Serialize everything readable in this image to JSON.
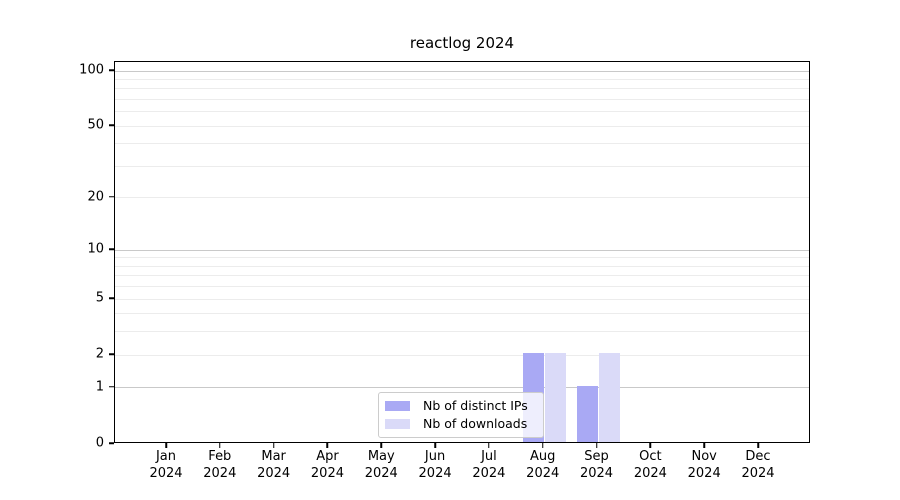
{
  "figure": {
    "title": "reactlog 2024"
  },
  "colors": {
    "distinct_ips_bar": "#a9a9f4",
    "downloads_bar": "#dadaf8",
    "grid_major": "#c9c9c9",
    "grid_minor": "#ececec",
    "spine": "#000000",
    "legend_border": "#cccccc"
  },
  "chart_data": {
    "type": "bar",
    "title": "reactlog 2024",
    "xlabel": "",
    "ylabel": "",
    "categories": [
      "Jan 2024",
      "Feb 2024",
      "Mar 2024",
      "Apr 2024",
      "May 2024",
      "Jun 2024",
      "Jul 2024",
      "Aug 2024",
      "Sep 2024",
      "Oct 2024",
      "Nov 2024",
      "Dec 2024"
    ],
    "x_tick_lines": [
      [
        "Jan",
        "2024"
      ],
      [
        "Feb",
        "2024"
      ],
      [
        "Mar",
        "2024"
      ],
      [
        "Apr",
        "2024"
      ],
      [
        "May",
        "2024"
      ],
      [
        "Jun",
        "2024"
      ],
      [
        "Jul",
        "2024"
      ],
      [
        "Aug",
        "2024"
      ],
      [
        "Sep",
        "2024"
      ],
      [
        "Oct",
        "2024"
      ],
      [
        "Nov",
        "2024"
      ],
      [
        "Dec",
        "2024"
      ]
    ],
    "series": [
      {
        "name": "Nb of distinct IPs",
        "color": "#a9a9f4",
        "values": [
          0,
          0,
          0,
          0,
          0,
          0,
          0,
          2,
          1,
          0,
          0,
          0
        ]
      },
      {
        "name": "Nb of downloads",
        "color": "#dadaf8",
        "values": [
          0,
          0,
          0,
          0,
          0,
          0,
          0,
          2,
          2,
          0,
          0,
          0
        ]
      }
    ],
    "yscale": "log1p",
    "ylim": [
      0,
      112
    ],
    "y_ticks": [
      0,
      1,
      2,
      5,
      10,
      20,
      50,
      100
    ],
    "gridlines": {
      "major": [
        1,
        10,
        100
      ],
      "minor": [
        2,
        3,
        4,
        5,
        6,
        7,
        8,
        9,
        20,
        30,
        40,
        50,
        60,
        70,
        80,
        90
      ]
    },
    "grid": "on",
    "legend_position": "lower center"
  }
}
